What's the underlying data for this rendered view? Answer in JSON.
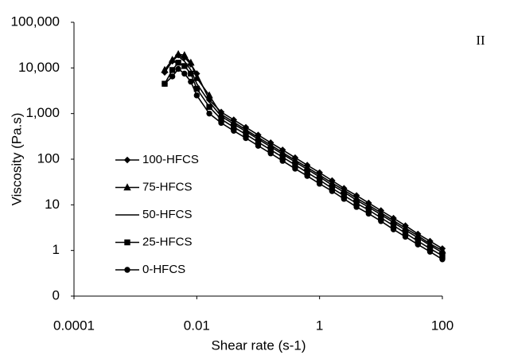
{
  "chart_data": {
    "type": "line",
    "annotation": "II",
    "x_label": "Shear rate (s-1)",
    "y_label": "Viscosity (Pa.s)",
    "xscale": "log",
    "yscale": "log",
    "xlim": [
      0.0001,
      100
    ],
    "xticks": [
      0.0001,
      0.01,
      1,
      100
    ],
    "ylim": [
      0.1,
      100000
    ],
    "yticks": [
      {
        "value": 0.1,
        "label": "0"
      },
      1,
      10,
      100,
      {
        "value": 1000,
        "label": "1,000"
      },
      {
        "value": 10000,
        "label": "10,000"
      },
      {
        "value": 100000,
        "label": "100,000"
      }
    ],
    "grid": false,
    "legend": "lower-left",
    "x": [
      0.003,
      0.004,
      0.005,
      0.0063,
      0.008,
      0.01,
      0.016,
      0.025,
      0.04,
      0.063,
      0.1,
      0.16,
      0.25,
      0.4,
      0.63,
      1,
      1.6,
      2.5,
      4,
      6.3,
      10,
      16,
      25,
      40,
      63,
      100
    ],
    "series": [
      {
        "name": "100-HFCS",
        "color": "#000000",
        "marker": "diamond",
        "values": [
          8000,
          14000,
          19000,
          17000,
          12000,
          7500,
          2000,
          1080,
          730,
          500,
          340,
          230,
          160,
          108,
          74,
          51,
          34,
          23,
          16,
          11,
          7.5,
          5.1,
          3.5,
          2.3,
          1.6,
          1.1
        ]
      },
      {
        "name": "75-HFCS",
        "color": "#000000",
        "marker": "triangle",
        "values": [
          9000,
          15000,
          20000,
          19000,
          13000,
          6000,
          2500,
          960,
          650,
          440,
          300,
          205,
          140,
          95,
          66,
          45,
          30,
          21,
          14,
          9.8,
          6.7,
          4.5,
          3.1,
          2.1,
          1.4,
          1.0
        ]
      },
      {
        "name": "50-HFCS",
        "color": "#000000",
        "marker": "none",
        "values": [
          9000,
          15000,
          18000,
          14000,
          9000,
          4500,
          1800,
          870,
          590,
          405,
          275,
          187,
          129,
          87,
          60,
          41,
          27,
          19,
          12.6,
          8.9,
          6.1,
          4.1,
          2.8,
          1.9,
          1.3,
          0.9
        ]
      },
      {
        "name": "25-HFCS",
        "color": "#000000",
        "marker": "square",
        "values": [
          4500,
          9000,
          13000,
          11000,
          7500,
          3500,
          1400,
          750,
          505,
          350,
          237,
          160,
          111,
          75,
          51,
          35,
          23,
          16,
          10.8,
          7.7,
          5.2,
          3.5,
          2.4,
          1.6,
          1.1,
          0.77
        ]
      },
      {
        "name": "0-HFCS",
        "color": "#000000",
        "marker": "circle",
        "values": [
          4500,
          6500,
          9500,
          7500,
          5000,
          2500,
          1000,
          625,
          420,
          290,
          197,
          134,
          92,
          62,
          43,
          29,
          20,
          13.5,
          9,
          6.4,
          4.4,
          2.9,
          2.0,
          1.35,
          0.94,
          0.64
        ]
      }
    ]
  }
}
